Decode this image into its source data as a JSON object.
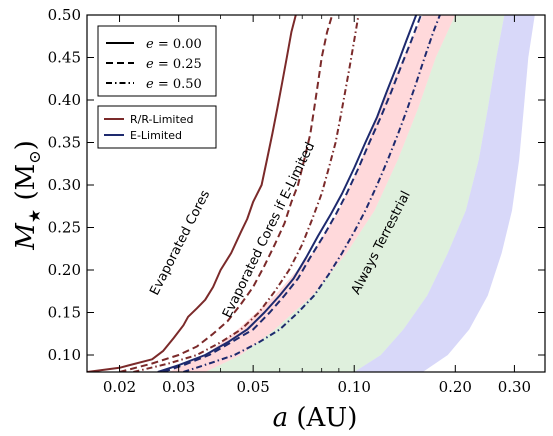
{
  "chart_data": {
    "type": "line",
    "xlabel": "a (AU)",
    "ylabel": "M★ (M⊙)",
    "xscale": "log",
    "xlim": [
      0.016,
      0.37
    ],
    "ylim": [
      0.08,
      0.5
    ],
    "x_ticks": [
      {
        "value": 0.02,
        "label": "0.02"
      },
      {
        "value": 0.03,
        "label": "0.03"
      },
      {
        "value": 0.05,
        "label": "0.05"
      },
      {
        "value": 0.1,
        "label": "0.10"
      },
      {
        "value": 0.2,
        "label": "0.20"
      },
      {
        "value": 0.3,
        "label": "0.30"
      }
    ],
    "y_ticks": [
      {
        "value": 0.1,
        "label": "0.10"
      },
      {
        "value": 0.15,
        "label": "0.15"
      },
      {
        "value": 0.2,
        "label": "0.20"
      },
      {
        "value": 0.25,
        "label": "0.25"
      },
      {
        "value": 0.3,
        "label": "0.30"
      },
      {
        "value": 0.35,
        "label": "0.35"
      },
      {
        "value": 0.4,
        "label": "0.40"
      },
      {
        "value": 0.45,
        "label": "0.45"
      },
      {
        "value": 0.5,
        "label": "0.50"
      }
    ],
    "legend_eccentricity": {
      "placement": "top-left",
      "entries": [
        {
          "label": "e = 0.00",
          "dash": "solid"
        },
        {
          "label": "e = 0.25",
          "dash": "dashed"
        },
        {
          "label": "e = 0.50",
          "dash": "dashdot"
        }
      ]
    },
    "legend_mechanism": {
      "placement": "upper-left",
      "entries": [
        {
          "label": "R/R-Limited",
          "color": "#7b2a2a"
        },
        {
          "label": "E-Limited",
          "color": "#1e2a6e"
        }
      ]
    },
    "annotations": [
      {
        "text": "Evaporated Cores",
        "x": 0.031,
        "y": 0.23,
        "angle": -63
      },
      {
        "text": "Evaporated Cores if E-Limited",
        "x": 0.057,
        "y": 0.245,
        "angle": -64
      },
      {
        "text": "Always Terrestrial",
        "x": 0.123,
        "y": 0.23,
        "angle": -63
      }
    ],
    "bands": [
      {
        "name": "pink",
        "color": "#ffb3b8",
        "opacity": 0.5,
        "left": [
          [
            0.028,
            0.08
          ],
          [
            0.036,
            0.1
          ],
          [
            0.045,
            0.13
          ],
          [
            0.058,
            0.17
          ],
          [
            0.075,
            0.22
          ],
          [
            0.09,
            0.27
          ],
          [
            0.105,
            0.33
          ],
          [
            0.12,
            0.39
          ],
          [
            0.14,
            0.45
          ],
          [
            0.16,
            0.5
          ]
        ],
        "right": [
          [
            0.036,
            0.08
          ],
          [
            0.046,
            0.1
          ],
          [
            0.058,
            0.13
          ],
          [
            0.075,
            0.17
          ],
          [
            0.095,
            0.22
          ],
          [
            0.115,
            0.27
          ],
          [
            0.135,
            0.33
          ],
          [
            0.155,
            0.39
          ],
          [
            0.175,
            0.45
          ],
          [
            0.2,
            0.5
          ]
        ]
      },
      {
        "name": "green",
        "color": "#b9ddb4",
        "opacity": 0.45,
        "left": [
          [
            0.036,
            0.08
          ],
          [
            0.046,
            0.1
          ],
          [
            0.058,
            0.13
          ],
          [
            0.075,
            0.17
          ],
          [
            0.095,
            0.22
          ],
          [
            0.115,
            0.27
          ],
          [
            0.135,
            0.33
          ],
          [
            0.155,
            0.39
          ],
          [
            0.175,
            0.45
          ],
          [
            0.2,
            0.5
          ]
        ],
        "right": [
          [
            0.1,
            0.08
          ],
          [
            0.12,
            0.1
          ],
          [
            0.14,
            0.13
          ],
          [
            0.165,
            0.17
          ],
          [
            0.19,
            0.22
          ],
          [
            0.215,
            0.27
          ],
          [
            0.235,
            0.33
          ],
          [
            0.25,
            0.39
          ],
          [
            0.265,
            0.45
          ],
          [
            0.28,
            0.5
          ]
        ]
      },
      {
        "name": "blue",
        "color": "#b8b8f4",
        "opacity": 0.55,
        "left": [
          [
            0.1,
            0.08
          ],
          [
            0.12,
            0.1
          ],
          [
            0.14,
            0.13
          ],
          [
            0.165,
            0.17
          ],
          [
            0.19,
            0.22
          ],
          [
            0.215,
            0.27
          ],
          [
            0.235,
            0.33
          ],
          [
            0.25,
            0.39
          ],
          [
            0.265,
            0.45
          ],
          [
            0.28,
            0.5
          ]
        ],
        "right": [
          [
            0.16,
            0.08
          ],
          [
            0.19,
            0.1
          ],
          [
            0.22,
            0.13
          ],
          [
            0.25,
            0.17
          ],
          [
            0.275,
            0.22
          ],
          [
            0.295,
            0.27
          ],
          [
            0.31,
            0.33
          ],
          [
            0.32,
            0.39
          ],
          [
            0.33,
            0.45
          ],
          [
            0.345,
            0.5
          ]
        ]
      }
    ],
    "series": [
      {
        "color": "#7b2a2a",
        "dash": "solid",
        "points": [
          [
            0.016,
            0.08
          ],
          [
            0.02,
            0.085
          ],
          [
            0.025,
            0.095
          ],
          [
            0.027,
            0.105
          ],
          [
            0.029,
            0.12
          ],
          [
            0.031,
            0.135
          ],
          [
            0.032,
            0.145
          ],
          [
            0.034,
            0.155
          ],
          [
            0.036,
            0.165
          ],
          [
            0.038,
            0.18
          ],
          [
            0.04,
            0.2
          ],
          [
            0.043,
            0.22
          ],
          [
            0.046,
            0.245
          ],
          [
            0.048,
            0.26
          ],
          [
            0.05,
            0.28
          ],
          [
            0.053,
            0.3
          ],
          [
            0.055,
            0.33
          ],
          [
            0.057,
            0.36
          ],
          [
            0.059,
            0.39
          ],
          [
            0.061,
            0.42
          ],
          [
            0.063,
            0.45
          ],
          [
            0.065,
            0.48
          ],
          [
            0.067,
            0.5
          ]
        ]
      },
      {
        "color": "#7b2a2a",
        "dash": "dashed",
        "points": [
          [
            0.02,
            0.08
          ],
          [
            0.025,
            0.09
          ],
          [
            0.03,
            0.1
          ],
          [
            0.034,
            0.11
          ],
          [
            0.038,
            0.125
          ],
          [
            0.042,
            0.14
          ],
          [
            0.046,
            0.16
          ],
          [
            0.05,
            0.18
          ],
          [
            0.054,
            0.205
          ],
          [
            0.058,
            0.23
          ],
          [
            0.062,
            0.255
          ],
          [
            0.065,
            0.28
          ],
          [
            0.068,
            0.3
          ],
          [
            0.071,
            0.33
          ],
          [
            0.074,
            0.36
          ],
          [
            0.076,
            0.39
          ],
          [
            0.078,
            0.42
          ],
          [
            0.08,
            0.45
          ],
          [
            0.083,
            0.48
          ],
          [
            0.086,
            0.5
          ]
        ]
      },
      {
        "color": "#7b2a2a",
        "dash": "dashdot",
        "points": [
          [
            0.022,
            0.08
          ],
          [
            0.028,
            0.09
          ],
          [
            0.034,
            0.1
          ],
          [
            0.04,
            0.115
          ],
          [
            0.046,
            0.13
          ],
          [
            0.052,
            0.15
          ],
          [
            0.058,
            0.175
          ],
          [
            0.064,
            0.2
          ],
          [
            0.07,
            0.23
          ],
          [
            0.075,
            0.26
          ],
          [
            0.08,
            0.29
          ],
          [
            0.084,
            0.32
          ],
          [
            0.088,
            0.35
          ],
          [
            0.091,
            0.38
          ],
          [
            0.094,
            0.41
          ],
          [
            0.097,
            0.44
          ],
          [
            0.1,
            0.47
          ],
          [
            0.103,
            0.5
          ]
        ]
      },
      {
        "color": "#1e2a6e",
        "dash": "solid",
        "points": [
          [
            0.026,
            0.08
          ],
          [
            0.03,
            0.088
          ],
          [
            0.036,
            0.1
          ],
          [
            0.042,
            0.115
          ],
          [
            0.048,
            0.13
          ],
          [
            0.054,
            0.15
          ],
          [
            0.06,
            0.17
          ],
          [
            0.066,
            0.19
          ],
          [
            0.072,
            0.215
          ],
          [
            0.078,
            0.24
          ],
          [
            0.085,
            0.265
          ],
          [
            0.092,
            0.29
          ],
          [
            0.1,
            0.32
          ],
          [
            0.108,
            0.35
          ],
          [
            0.117,
            0.38
          ],
          [
            0.125,
            0.41
          ],
          [
            0.134,
            0.44
          ],
          [
            0.143,
            0.47
          ],
          [
            0.153,
            0.5
          ]
        ]
      },
      {
        "color": "#1e2a6e",
        "dash": "dashed",
        "points": [
          [
            0.027,
            0.08
          ],
          [
            0.031,
            0.088
          ],
          [
            0.037,
            0.1
          ],
          [
            0.043,
            0.115
          ],
          [
            0.05,
            0.13
          ],
          [
            0.056,
            0.15
          ],
          [
            0.062,
            0.17
          ],
          [
            0.068,
            0.19
          ],
          [
            0.074,
            0.215
          ],
          [
            0.081,
            0.24
          ],
          [
            0.088,
            0.265
          ],
          [
            0.095,
            0.29
          ],
          [
            0.103,
            0.32
          ],
          [
            0.111,
            0.35
          ],
          [
            0.12,
            0.38
          ],
          [
            0.129,
            0.41
          ],
          [
            0.138,
            0.44
          ],
          [
            0.148,
            0.47
          ],
          [
            0.158,
            0.5
          ]
        ]
      },
      {
        "color": "#1e2a6e",
        "dash": "dashdot",
        "points": [
          [
            0.031,
            0.08
          ],
          [
            0.037,
            0.09
          ],
          [
            0.044,
            0.1
          ],
          [
            0.052,
            0.115
          ],
          [
            0.06,
            0.13
          ],
          [
            0.068,
            0.15
          ],
          [
            0.076,
            0.17
          ],
          [
            0.084,
            0.195
          ],
          [
            0.092,
            0.22
          ],
          [
            0.1,
            0.245
          ],
          [
            0.108,
            0.27
          ],
          [
            0.117,
            0.3
          ],
          [
            0.126,
            0.33
          ],
          [
            0.135,
            0.36
          ],
          [
            0.144,
            0.39
          ],
          [
            0.153,
            0.42
          ],
          [
            0.162,
            0.45
          ],
          [
            0.172,
            0.48
          ],
          [
            0.18,
            0.5
          ]
        ]
      }
    ]
  }
}
